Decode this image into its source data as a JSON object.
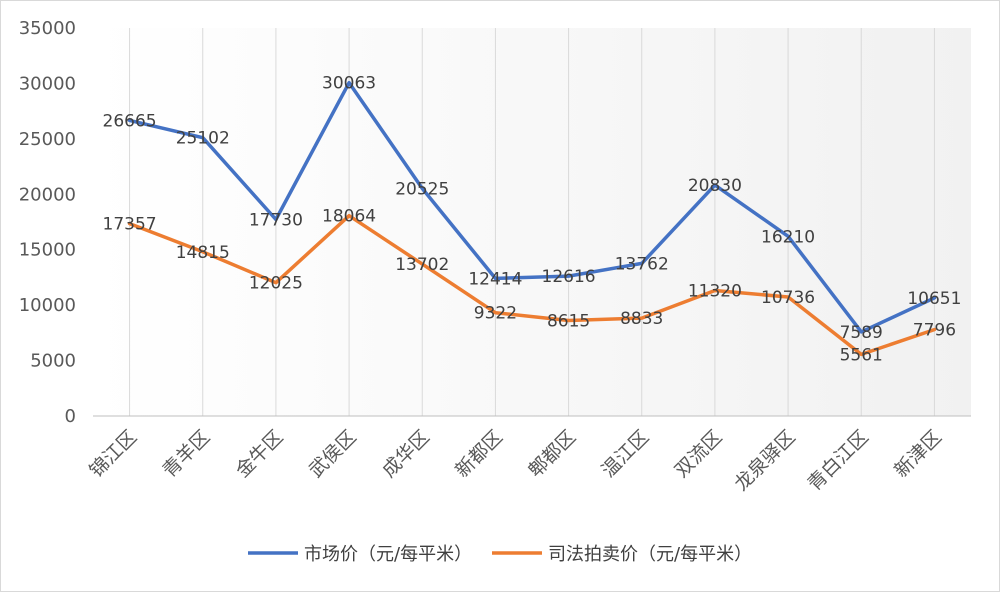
{
  "chart_data": {
    "type": "line",
    "categories": [
      "锦江区",
      "青羊区",
      "金牛区",
      "武侯区",
      "成华区",
      "新都区",
      "郫都区",
      "温江区",
      "双流区",
      "龙泉驿区",
      "青白江区",
      "新津区"
    ],
    "series": [
      {
        "name": "市场价（元/每平米）",
        "color": "#4472C4",
        "values": [
          26665,
          25102,
          17730,
          30063,
          20525,
          12414,
          12616,
          13762,
          20830,
          16210,
          7589,
          10651
        ]
      },
      {
        "name": "司法拍卖价（元/每平米）",
        "color": "#ED7D31",
        "values": [
          17357,
          14815,
          12025,
          18064,
          13702,
          9322,
          8615,
          8833,
          11320,
          10736,
          5561,
          7796
        ]
      }
    ],
    "yticks": [
      "0",
      "5000",
      "10000",
      "15000",
      "20000",
      "25000",
      "30000",
      "35000"
    ],
    "ylim": [
      0,
      35000
    ],
    "legend_position": "bottom",
    "grid": "vertical"
  }
}
